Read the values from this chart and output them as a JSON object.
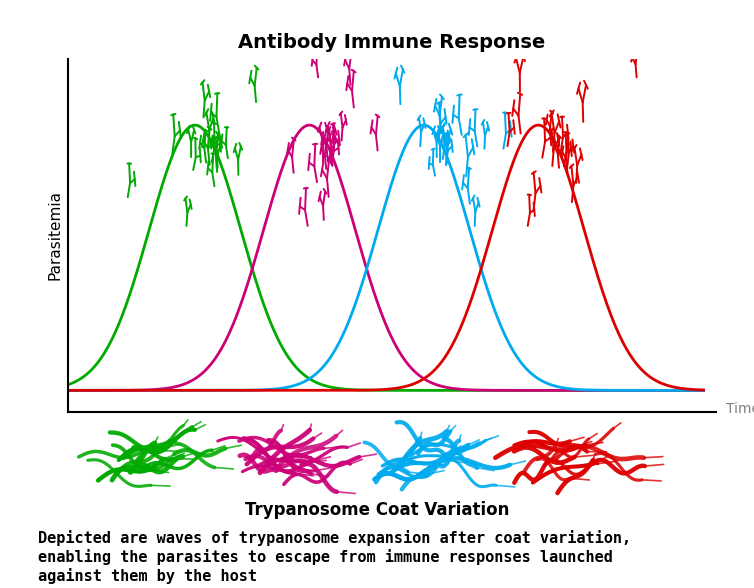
{
  "title": "Antibody Immune Response",
  "title_fontsize": 14,
  "title_fontweight": "bold",
  "xlabel": "Time",
  "ylabel": "Parasitemia",
  "bottom_label": "Trypanosome Coat Variation",
  "caption": "Depicted are waves of trypanosome expansion after coat variation,\nenabling the parasites to escape from immune responses launched\nagainst them by the host",
  "caption_fontsize": 11,
  "caption_fontweight": "bold",
  "wave_centers": [
    2.0,
    3.8,
    5.6,
    7.4
  ],
  "wave_colors": [
    "#00aa00",
    "#cc0077",
    "#00aaee",
    "#dd0000"
  ],
  "wave_sigma": 0.72,
  "wave_amplitude": 1.0,
  "background_color": "#ffffff",
  "figsize": [
    7.54,
    5.88
  ],
  "dpi": 100
}
